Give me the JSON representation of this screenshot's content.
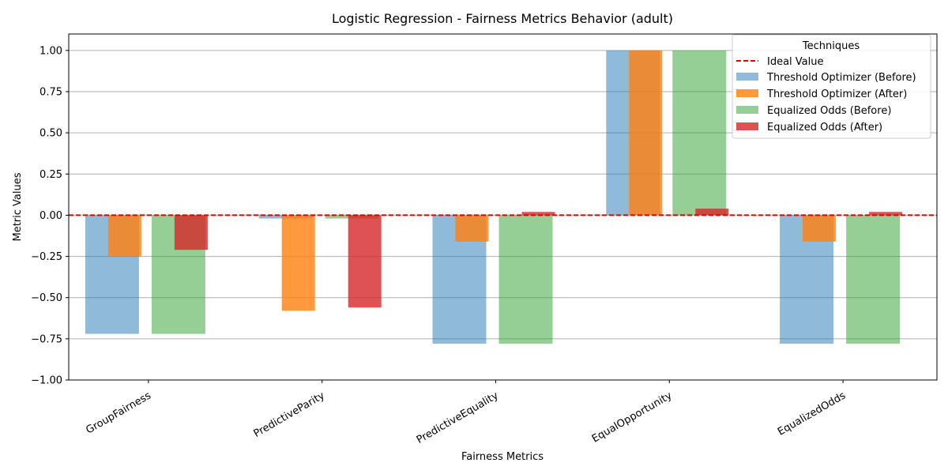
{
  "chart_data": {
    "type": "bar",
    "title": "Logistic Regression - Fairness Metrics Behavior (adult)",
    "xlabel": "Fairness Metrics",
    "ylabel": "Metric Values",
    "ylim": [
      -1.0,
      1.1
    ],
    "yticks": [
      "−1.00",
      "−0.75",
      "−0.50",
      "−0.25",
      "0.00",
      "0.25",
      "0.50",
      "0.75",
      "1.00"
    ],
    "categories": [
      "GroupFairness",
      "PredictiveParity",
      "PredictiveEquality",
      "EqualOpportunity",
      "EqualizedOdds"
    ],
    "grid": "horizontal",
    "ideal_value": 0,
    "legend": {
      "title": "Techniques",
      "placement": "top-right",
      "ideal_label": "Ideal Value"
    },
    "series": [
      {
        "name": "Threshold Optimizer (Before)",
        "color": "#1f77b4",
        "opacity": 0.5,
        "values": [
          -0.72,
          -0.02,
          -0.78,
          1.0,
          -0.78
        ]
      },
      {
        "name": "Threshold Optimizer (After)",
        "color": "#ff7f0e",
        "opacity": 0.8,
        "values": [
          -0.25,
          -0.58,
          -0.16,
          1.0,
          -0.16
        ]
      },
      {
        "name": "Equalized Odds (Before)",
        "color": "#2ca02c",
        "opacity": 0.5,
        "values": [
          -0.72,
          -0.02,
          -0.78,
          1.0,
          -0.78
        ]
      },
      {
        "name": "Equalized Odds (After)",
        "color": "#d62728",
        "opacity": 0.8,
        "values": [
          -0.21,
          -0.56,
          0.02,
          0.04,
          0.02
        ]
      }
    ],
    "ideal_line_color": "#e00000"
  }
}
